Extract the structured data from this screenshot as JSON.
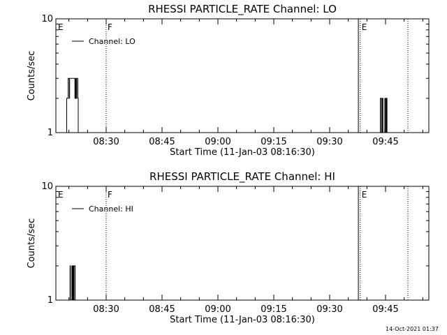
{
  "footer_timestamp": "14-Oct-2021 01:37",
  "chart_data": [
    {
      "type": "line",
      "title": "RHESSI PARTICLE_RATE Channel: LO",
      "xlabel": "Start Time (11-Jan-03 08:16:30)",
      "ylabel": "Counts/sec",
      "yscale": "log",
      "ylim": [
        1,
        10
      ],
      "ytick_labels": [
        "1",
        "10"
      ],
      "xlim_minutes": [
        0,
        75
      ],
      "x_tick_labels": [
        "08:30",
        "08:45",
        "09:00",
        "09:15",
        "09:30",
        "09:45"
      ],
      "x_tick_minutes": [
        13.5,
        28.5,
        43.5,
        58.5,
        73.5,
        88.5
      ],
      "legend": {
        "label": "Channel: LO",
        "position": "top-left"
      },
      "annotations": [
        {
          "label": "E",
          "minute": 0.3,
          "line": "none"
        },
        {
          "label": "F",
          "minute": 13.5,
          "line": "dotted"
        },
        {
          "label": "",
          "minute": 81.2,
          "line": "solid"
        },
        {
          "label": "E",
          "minute": 81.7,
          "line": "dotted"
        },
        {
          "label": "",
          "minute": 94.5,
          "line": "dotted"
        }
      ],
      "series": [
        {
          "points": [
            [
              2.8,
              1
            ],
            [
              2.9,
              2
            ],
            [
              3.2,
              2
            ],
            [
              3.3,
              3
            ],
            [
              3.6,
              2
            ],
            [
              3.7,
              3
            ],
            [
              4.4,
              3
            ],
            [
              4.5,
              3
            ],
            [
              5.0,
              3
            ],
            [
              5.1,
              2
            ],
            [
              5.3,
              3
            ],
            [
              5.5,
              2
            ],
            [
              5.6,
              3
            ],
            [
              5.9,
              2
            ],
            [
              6.0,
              1
            ],
            [
              87.0,
              1
            ],
            [
              87.1,
              2
            ],
            [
              87.4,
              1
            ],
            [
              87.6,
              2
            ],
            [
              87.8,
              1
            ],
            [
              88.3,
              2
            ],
            [
              88.5,
              1
            ],
            [
              88.7,
              2
            ],
            [
              88.9,
              1
            ]
          ]
        }
      ]
    },
    {
      "type": "line",
      "title": "RHESSI PARTICLE_RATE Channel: HI",
      "xlabel": "Start Time (11-Jan-03 08:16:30)",
      "ylabel": "Counts/sec",
      "yscale": "log",
      "ylim": [
        1,
        10
      ],
      "ytick_labels": [
        "1",
        "10"
      ],
      "xlim_minutes": [
        0,
        75
      ],
      "x_tick_labels": [
        "08:30",
        "08:45",
        "09:00",
        "09:15",
        "09:30",
        "09:45"
      ],
      "x_tick_minutes": [
        13.5,
        28.5,
        43.5,
        58.5,
        73.5,
        88.5
      ],
      "legend": {
        "label": "Channel: HI",
        "position": "top-left"
      },
      "annotations": [
        {
          "label": "E",
          "minute": 0.3,
          "line": "none"
        },
        {
          "label": "F",
          "minute": 13.5,
          "line": "dotted"
        },
        {
          "label": "",
          "minute": 81.2,
          "line": "solid"
        },
        {
          "label": "E",
          "minute": 81.7,
          "line": "dotted"
        },
        {
          "label": "",
          "minute": 94.5,
          "line": "dotted"
        }
      ],
      "series": [
        {
          "points": [
            [
              3.7,
              1
            ],
            [
              3.8,
              2
            ],
            [
              3.9,
              1
            ],
            [
              4.3,
              2
            ],
            [
              4.4,
              1
            ],
            [
              4.6,
              2
            ],
            [
              4.7,
              1
            ],
            [
              4.9,
              2
            ],
            [
              5.1,
              2
            ],
            [
              5.2,
              1
            ]
          ]
        }
      ]
    }
  ]
}
